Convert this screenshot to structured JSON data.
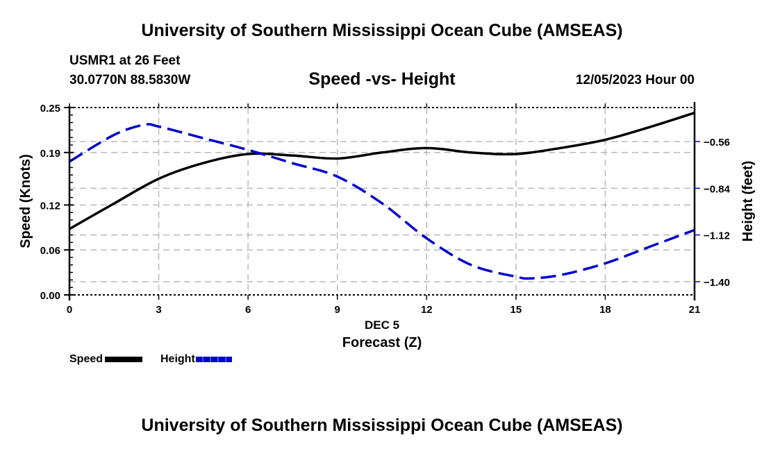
{
  "header": {
    "title": "University of Southern Mississippi Ocean Cube (AMSEAS)",
    "station": "USMR1 at 26 Feet",
    "coords": "30.0770N  88.5830W",
    "subtitle": "Speed -vs- Height",
    "datetime": "12/05/2023 Hour 00"
  },
  "footer": {
    "title": "University of Southern Mississippi Ocean Cube (AMSEAS)"
  },
  "chart_data": {
    "type": "line",
    "title": "Speed -vs- Height",
    "xlabel": "Forecast (Z)",
    "xsublabel": "DEC 5",
    "ylabel": "Speed (Knots)",
    "y2label": "Height (feet)",
    "xlim": [
      0,
      21
    ],
    "ylim": [
      0,
      0.25
    ],
    "y2lim": [
      -1.5,
      -0.4
    ],
    "x_ticks": [
      0,
      3,
      6,
      9,
      12,
      15,
      18,
      21
    ],
    "x_tick_labels": [
      "0",
      "3",
      "6",
      "9",
      "12",
      "15",
      "18",
      "21"
    ],
    "y_ticks": [
      0.0,
      0.06,
      0.12,
      0.19,
      0.25
    ],
    "y_tick_labels": [
      "0.00",
      "0.06",
      "0.12",
      "0.19",
      "0.25"
    ],
    "y2_ticks": [
      -0.56,
      -0.84,
      -1.12,
      -1.4
    ],
    "y2_tick_labels": [
      "−0.56",
      "−0.84",
      "−1.12",
      "−1.40"
    ],
    "grid": true,
    "legend_position": "bottom-left",
    "series": [
      {
        "name": "Speed",
        "axis": "left",
        "color": "#000000",
        "style": "solid",
        "x": [
          0,
          1.5,
          3,
          4.5,
          6,
          7.5,
          9,
          10.5,
          12,
          13.5,
          15,
          16.5,
          18,
          19.5,
          21
        ],
        "values": [
          0.088,
          0.122,
          0.155,
          0.176,
          0.188,
          0.186,
          0.182,
          0.19,
          0.196,
          0.19,
          0.188,
          0.196,
          0.207,
          0.224,
          0.243
        ]
      },
      {
        "name": "Height",
        "axis": "right",
        "color": "#0000cc",
        "style": "dashed",
        "x": [
          0,
          1.5,
          2.5,
          3,
          4.5,
          6,
          7.5,
          9,
          10.5,
          12,
          13.5,
          15,
          15.5,
          16.5,
          18,
          19.5,
          21
        ],
        "values": [
          -0.68,
          -0.52,
          -0.46,
          -0.47,
          -0.54,
          -0.61,
          -0.69,
          -0.77,
          -0.93,
          -1.14,
          -1.3,
          -1.37,
          -1.38,
          -1.36,
          -1.29,
          -1.19,
          -1.09
        ]
      }
    ]
  }
}
